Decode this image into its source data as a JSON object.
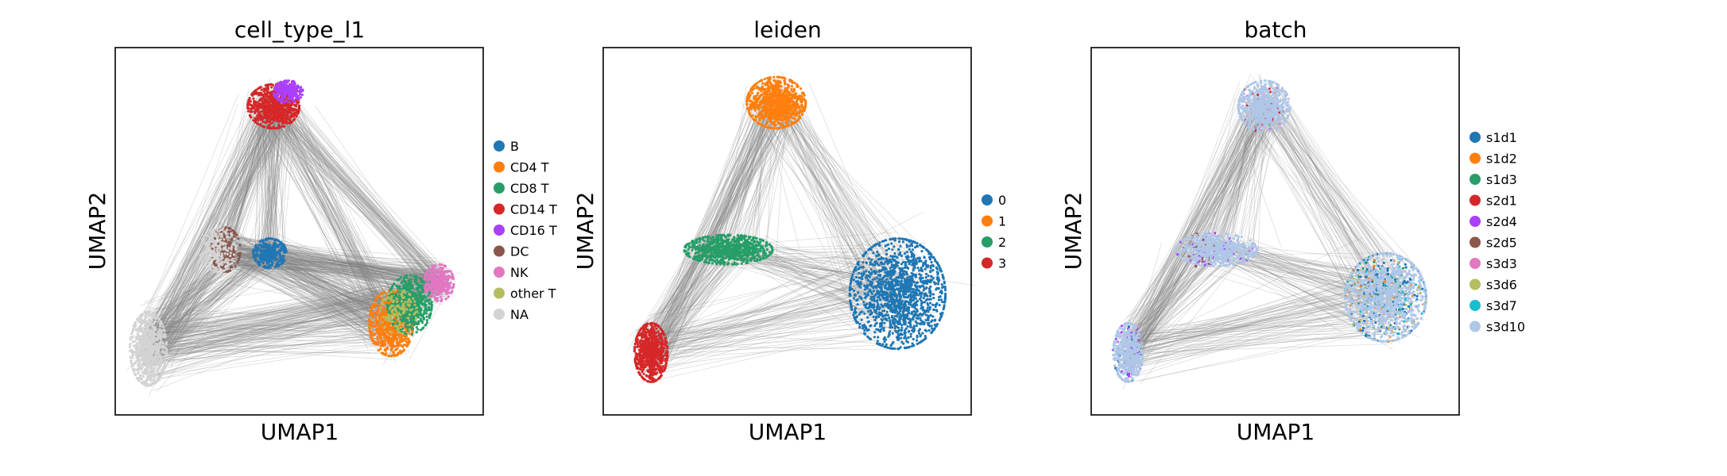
{
  "figure": {
    "layout": "three side-by-side UMAP embedding panels with graph edges"
  },
  "chart_data": [
    {
      "type": "scatter",
      "title": "cell_type_l1",
      "xlabel": "UMAP1",
      "ylabel": "UMAP2",
      "grid": false,
      "ticks": false,
      "legend": "right",
      "edges": {
        "color": "#808080",
        "drawn_between": "cluster_centroids"
      },
      "series": [
        {
          "name": "B",
          "color": "#1f77b4",
          "clusters": [
            {
              "x": 0.42,
              "y": 0.44,
              "rx": 0.045,
              "ry": 0.04,
              "density": 320
            }
          ]
        },
        {
          "name": "CD4 T",
          "color": "#ff7f0e",
          "clusters": [
            {
              "x": 0.75,
              "y": 0.25,
              "rx": 0.06,
              "ry": 0.09,
              "density": 700
            }
          ]
        },
        {
          "name": "CD8 T",
          "color": "#279e68",
          "clusters": [
            {
              "x": 0.8,
              "y": 0.3,
              "rx": 0.06,
              "ry": 0.08,
              "density": 600
            }
          ]
        },
        {
          "name": "CD14 T",
          "color": "#d62728",
          "clusters": [
            {
              "x": 0.43,
              "y": 0.84,
              "rx": 0.07,
              "ry": 0.06,
              "density": 700
            }
          ]
        },
        {
          "name": "CD16 T",
          "color": "#aa40fc",
          "clusters": [
            {
              "x": 0.47,
              "y": 0.88,
              "rx": 0.04,
              "ry": 0.03,
              "density": 260
            }
          ]
        },
        {
          "name": "DC",
          "color": "#8c564b",
          "clusters": [
            {
              "x": 0.3,
              "y": 0.45,
              "rx": 0.04,
              "ry": 0.06,
              "density": 220
            }
          ]
        },
        {
          "name": "NK",
          "color": "#e377c2",
          "clusters": [
            {
              "x": 0.88,
              "y": 0.36,
              "rx": 0.04,
              "ry": 0.05,
              "density": 320
            }
          ]
        },
        {
          "name": "other T",
          "color": "#b5bd61",
          "clusters": [
            {
              "x": 0.77,
              "y": 0.28,
              "rx": 0.05,
              "ry": 0.06,
              "density": 120
            }
          ]
        },
        {
          "name": "NA",
          "color": "#d3d3d3",
          "clusters": [
            {
              "x": 0.28,
              "y": 0.45,
              "rx": 0.05,
              "ry": 0.06,
              "density": 200
            },
            {
              "x": 0.09,
              "y": 0.18,
              "rx": 0.05,
              "ry": 0.1,
              "density": 650
            }
          ]
        }
      ]
    },
    {
      "type": "scatter",
      "title": "leiden",
      "xlabel": "UMAP1",
      "ylabel": "UMAP2",
      "grid": false,
      "ticks": false,
      "legend": "right",
      "edges": {
        "color": "#808080",
        "drawn_between": "cluster_centroids"
      },
      "series": [
        {
          "name": "0",
          "color": "#1f77b4",
          "clusters": [
            {
              "x": 0.8,
              "y": 0.33,
              "rx": 0.13,
              "ry": 0.15,
              "density": 1500
            }
          ]
        },
        {
          "name": "1",
          "color": "#ff7f0e",
          "clusters": [
            {
              "x": 0.47,
              "y": 0.85,
              "rx": 0.08,
              "ry": 0.07,
              "density": 900
            }
          ]
        },
        {
          "name": "2",
          "color": "#279e68",
          "clusters": [
            {
              "x": 0.34,
              "y": 0.45,
              "rx": 0.12,
              "ry": 0.04,
              "density": 800
            }
          ]
        },
        {
          "name": "3",
          "color": "#d62728",
          "clusters": [
            {
              "x": 0.13,
              "y": 0.17,
              "rx": 0.045,
              "ry": 0.08,
              "density": 700
            }
          ]
        }
      ]
    },
    {
      "type": "scatter",
      "title": "batch",
      "xlabel": "UMAP1",
      "ylabel": "UMAP2",
      "grid": false,
      "ticks": false,
      "legend": "right",
      "edges": {
        "color": "#808080",
        "drawn_between": "cluster_centroids"
      },
      "series": [
        {
          "name": "s1d1",
          "color": "#1f77b4",
          "clusters": [
            {
              "x": 0.8,
              "y": 0.32,
              "rx": 0.11,
              "ry": 0.12,
              "density": 260
            },
            {
              "x": 0.1,
              "y": 0.17,
              "rx": 0.04,
              "ry": 0.08,
              "density": 40
            }
          ]
        },
        {
          "name": "s1d2",
          "color": "#ff7f0e",
          "clusters": [
            {
              "x": 0.8,
              "y": 0.32,
              "rx": 0.11,
              "ry": 0.12,
              "density": 60
            }
          ]
        },
        {
          "name": "s1d3",
          "color": "#279e68",
          "clusters": [
            {
              "x": 0.8,
              "y": 0.32,
              "rx": 0.11,
              "ry": 0.12,
              "density": 50
            }
          ]
        },
        {
          "name": "s2d1",
          "color": "#d62728",
          "clusters": [
            {
              "x": 0.47,
              "y": 0.84,
              "rx": 0.07,
              "ry": 0.07,
              "density": 40
            }
          ]
        },
        {
          "name": "s2d4",
          "color": "#aa40fc",
          "clusters": [
            {
              "x": 0.34,
              "y": 0.45,
              "rx": 0.11,
              "ry": 0.045,
              "density": 50
            },
            {
              "x": 0.1,
              "y": 0.17,
              "rx": 0.04,
              "ry": 0.08,
              "density": 60
            }
          ]
        },
        {
          "name": "s2d5",
          "color": "#8c564b",
          "clusters": [
            {
              "x": 0.3,
              "y": 0.45,
              "rx": 0.05,
              "ry": 0.05,
              "density": 30
            }
          ]
        },
        {
          "name": "s3d3",
          "color": "#e377c2",
          "clusters": [
            {
              "x": 0.47,
              "y": 0.84,
              "rx": 0.07,
              "ry": 0.07,
              "density": 30
            }
          ]
        },
        {
          "name": "s3d6",
          "color": "#b5bd61",
          "clusters": [
            {
              "x": 0.8,
              "y": 0.32,
              "rx": 0.11,
              "ry": 0.12,
              "density": 40
            }
          ]
        },
        {
          "name": "s3d7",
          "color": "#17becf",
          "clusters": [
            {
              "x": 0.8,
              "y": 0.32,
              "rx": 0.11,
              "ry": 0.12,
              "density": 30
            }
          ]
        },
        {
          "name": "s3d10",
          "color": "#aec7e8",
          "clusters": [
            {
              "x": 0.8,
              "y": 0.32,
              "rx": 0.11,
              "ry": 0.12,
              "density": 900
            },
            {
              "x": 0.47,
              "y": 0.84,
              "rx": 0.07,
              "ry": 0.07,
              "density": 600
            },
            {
              "x": 0.34,
              "y": 0.45,
              "rx": 0.11,
              "ry": 0.045,
              "density": 500
            },
            {
              "x": 0.1,
              "y": 0.17,
              "rx": 0.04,
              "ry": 0.08,
              "density": 450
            }
          ]
        }
      ]
    }
  ]
}
